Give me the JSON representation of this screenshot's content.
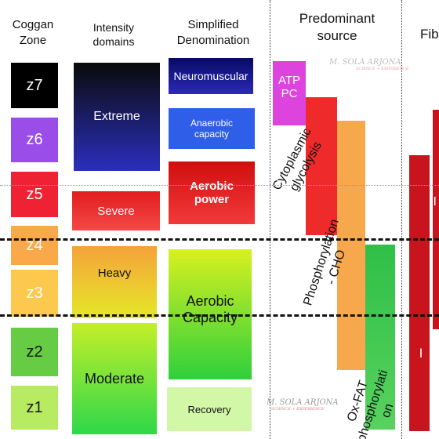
{
  "headers": {
    "coggan": "Coggan\nZone",
    "intensity": "Intensity\ndomains",
    "simplified": "Simplified\nDenomination",
    "source": "Predominant\nsource",
    "fiber": "Fib"
  },
  "coggan_zones": [
    "z7",
    "z6",
    "z5",
    "z4",
    "z3",
    "z2",
    "z1"
  ],
  "intensity_domains": [
    "Extreme",
    "Severe",
    "Heavy",
    "Moderate"
  ],
  "simplified": [
    "Neuromuscular",
    "Anaerobic\ncapacity",
    "Aerobic\npower",
    "Aerobic\nCapacity",
    "Recovery"
  ],
  "sources": [
    "ATP\nPC",
    "Cytoplasmic\nglycolysis",
    "Phosphorylation\n- CHO",
    "Ox-FAT\nphosphorylati\non"
  ],
  "fibers": [
    "II",
    "I"
  ],
  "watermark": {
    "name": "M. SOLA ARJONA",
    "tagline": "SCIENCE + EXPERIENCE"
  },
  "colors": {
    "z7": "#000000",
    "z6": "#9b4dea",
    "z5": "#ee2233",
    "z4": "#f9a94a",
    "z3": "#fcc94e",
    "z2": "#66cc44",
    "z1": "#b7ec62",
    "atp_pc": "#dd44dd",
    "glycolysis": "#ee2a2a",
    "phos_cho": "#f8a84c",
    "ox_fat": "#2fbf48",
    "fiber": "#c8141c",
    "neuromuscular": "#17177a",
    "anaerobic": "#2f5fe8",
    "aerobic_power": "#e11a1a",
    "recovery": "#d2f7a6"
  }
}
